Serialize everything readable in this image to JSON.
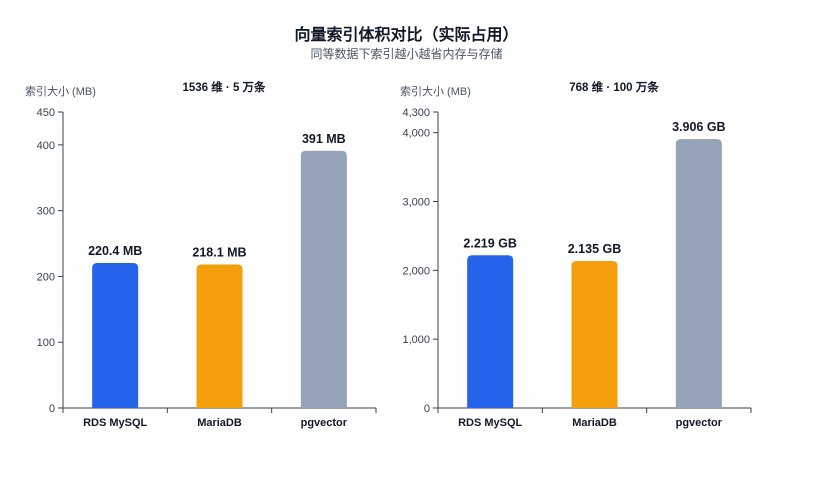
{
  "title": "向量索引体积对比（实际占用）",
  "subtitle": "同等数据下索引越小越省内存与存储",
  "chart_data": [
    {
      "type": "bar",
      "title": "1536 维 · 5 万条",
      "ylabel": "索引大小 (MB)",
      "categories": [
        "RDS MySQL",
        "MariaDB",
        "pgvector"
      ],
      "values": [
        220.4,
        218.1,
        391
      ],
      "data_labels": [
        "220.4 MB",
        "218.1 MB",
        "391 MB"
      ],
      "ylim": [
        0,
        450
      ],
      "yticks": [
        0,
        100,
        200,
        300,
        400,
        450
      ],
      "ytick_labels": [
        "0",
        "100",
        "200",
        "300",
        "400",
        "450"
      ],
      "colors": [
        "#2563eb",
        "#f59e0b",
        "#94a3b8"
      ],
      "grid": false
    },
    {
      "type": "bar",
      "title": "768 维 · 100 万条",
      "ylabel": "索引大小 (MB)",
      "categories": [
        "RDS MySQL",
        "MariaDB",
        "pgvector"
      ],
      "values": [
        2219,
        2135,
        3906
      ],
      "data_labels": [
        "2.219 GB",
        "2.135 GB",
        "3.906 GB"
      ],
      "ylim": [
        0,
        4300
      ],
      "yticks": [
        0,
        1000,
        2000,
        3000,
        4000,
        4300
      ],
      "ytick_labels": [
        "0",
        "1,000",
        "2,000",
        "3,000",
        "4,000",
        "4,300"
      ],
      "colors": [
        "#2563eb",
        "#f59e0b",
        "#94a3b8"
      ],
      "grid": false
    }
  ]
}
